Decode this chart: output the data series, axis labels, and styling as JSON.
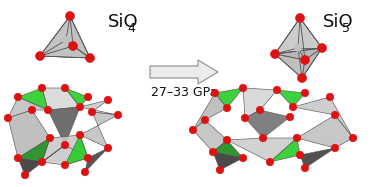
{
  "title_left": "SiO",
  "title_left_sub": "4",
  "title_right": "SiO",
  "title_right_sub": "5",
  "arrow_text": "27–33 GPa",
  "bg_color": "#ffffff",
  "title_fontsize": 13,
  "sub_fontsize": 9,
  "arrow_fontsize": 9,
  "fig_width": 3.78,
  "fig_height": 1.87,
  "fig_dpi": 100,
  "colors": {
    "red": "#dd1111",
    "green": "#22cc22",
    "dark_green": "#119911",
    "dark_gray": "#404040",
    "light_gray": "#c8c8c8",
    "mid_gray": "#909090",
    "si_sphere": "#c0c0c0",
    "arrow_fill": "#ebebeb",
    "arrow_edge": "#999999"
  }
}
